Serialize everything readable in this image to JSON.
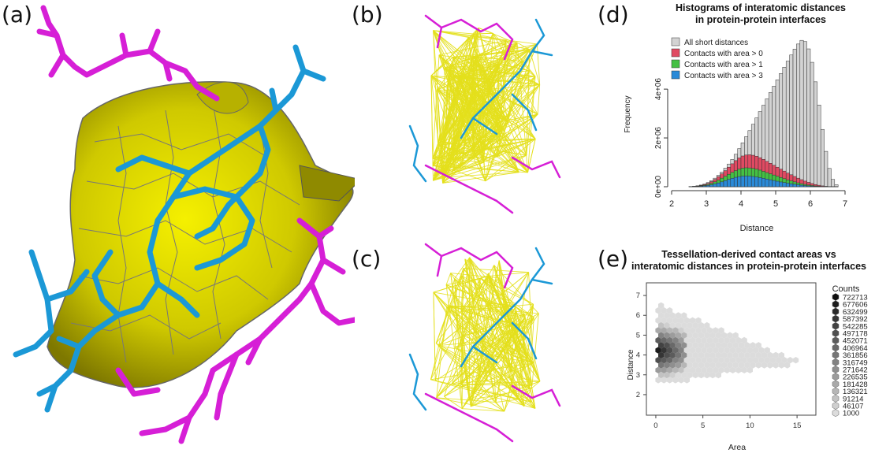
{
  "panels": {
    "a": {
      "label": "(a)"
    },
    "b": {
      "label": "(b)"
    },
    "c": {
      "label": "(c)"
    },
    "d": {
      "label": "(d)"
    },
    "e": {
      "label": "(e)"
    }
  },
  "colors": {
    "chain_a": "#d61fd6",
    "chain_b": "#1b98d6",
    "surface_yellow": "#e6e000",
    "surface_dark": "#8a8400",
    "contact_lines": "#e4e01c",
    "hist_all": "#d3d3d3",
    "hist_gt0": "#e04a62",
    "hist_gt1": "#44c044",
    "hist_gt3": "#2a8ad8"
  },
  "chart_data": [
    {
      "type": "bar",
      "title": "Histograms of interatomic distances\nin protein-protein interfaces",
      "title_lines": [
        "Histograms of interatomic distances",
        "in protein-protein interfaces"
      ],
      "xlabel": "Distance",
      "ylabel": "Frequency",
      "xlim": [
        2,
        7
      ],
      "ylim": [
        0,
        6200000
      ],
      "xticks": [
        "2",
        "3",
        "4",
        "5",
        "6",
        "7"
      ],
      "yticks": [
        "0e+00",
        "2e+06",
        "4e+06"
      ],
      "legend_position": "top-left",
      "bin_width": 0.1,
      "x": [
        2.5,
        2.6,
        2.7,
        2.8,
        2.9,
        3.0,
        3.1,
        3.2,
        3.3,
        3.4,
        3.5,
        3.6,
        3.7,
        3.8,
        3.9,
        4.0,
        4.1,
        4.2,
        4.3,
        4.4,
        4.5,
        4.6,
        4.7,
        4.8,
        4.9,
        5.0,
        5.1,
        5.2,
        5.3,
        5.4,
        5.5,
        5.6,
        5.7,
        5.8,
        5.9,
        6.0,
        6.1,
        6.2,
        6.3,
        6.4,
        6.5,
        6.6,
        6.7
      ],
      "series": [
        {
          "name": "All short distances",
          "values": [
            10000,
            20000,
            40000,
            70000,
            110000,
            170000,
            250000,
            350000,
            470000,
            600000,
            760000,
            930000,
            1120000,
            1330000,
            1560000,
            1800000,
            2050000,
            2300000,
            2560000,
            2820000,
            3080000,
            3340000,
            3600000,
            3860000,
            4120000,
            4380000,
            4640000,
            4900000,
            5150000,
            5400000,
            5640000,
            5850000,
            6000000,
            5950000,
            5650000,
            5100000,
            4300000,
            3350000,
            2350000,
            1450000,
            750000,
            300000,
            80000
          ]
        },
        {
          "name": "Contacts with area > 0",
          "values": [
            8000,
            15000,
            30000,
            55000,
            90000,
            140000,
            210000,
            300000,
            410000,
            530000,
            660000,
            800000,
            940000,
            1070000,
            1180000,
            1260000,
            1300000,
            1310000,
            1290000,
            1250000,
            1190000,
            1120000,
            1040000,
            960000,
            880000,
            800000,
            720000,
            640000,
            560000,
            490000,
            420000,
            350000,
            290000,
            230000,
            180000,
            130000,
            90000,
            60000,
            35000,
            18000,
            8000,
            3000,
            1000
          ]
        },
        {
          "name": "Contacts with area > 1",
          "values": [
            5000,
            10000,
            20000,
            38000,
            62000,
            95000,
            140000,
            200000,
            270000,
            350000,
            430000,
            510000,
            590000,
            660000,
            720000,
            760000,
            775000,
            770000,
            750000,
            720000,
            680000,
            630000,
            580000,
            530000,
            480000,
            430000,
            380000,
            330000,
            280000,
            240000,
            200000,
            160000,
            125000,
            95000,
            70000,
            50000,
            33000,
            20000,
            11000,
            5000,
            2000,
            800,
            200
          ]
        },
        {
          "name": "Contacts with area > 3",
          "values": [
            3000,
            6000,
            12000,
            22000,
            36000,
            55000,
            80000,
            115000,
            155000,
            200000,
            250000,
            300000,
            345000,
            385000,
            415000,
            435000,
            440000,
            435000,
            420000,
            400000,
            375000,
            345000,
            315000,
            285000,
            255000,
            225000,
            195000,
            170000,
            145000,
            120000,
            100000,
            80000,
            62000,
            47000,
            34000,
            24000,
            15000,
            9000,
            5000,
            2000,
            800,
            300,
            100
          ]
        }
      ]
    },
    {
      "type": "heatmap",
      "title": "Tessellation-derived contact areas vs\ninteratomic distances in protein-protein interfaces",
      "title_lines": [
        "Tessellation-derived contact areas vs",
        "interatomic distances in protein-protein interfaces"
      ],
      "xlabel": "Area",
      "ylabel": "Distance",
      "xlim": [
        -1,
        17
      ],
      "ylim": [
        1.6,
        7.4
      ],
      "xticks": [
        "0",
        "5",
        "10",
        "15"
      ],
      "yticks": [
        "2",
        "3",
        "4",
        "5",
        "6",
        "7"
      ],
      "legend_title": "Counts",
      "legend_levels": [
        "722713",
        "677606",
        "632499",
        "587392",
        "542285",
        "497178",
        "452071",
        "406964",
        "361856",
        "316749",
        "271642",
        "226535",
        "181428",
        "136321",
        "91214",
        "46107",
        "1000"
      ],
      "legend_position": "right"
    }
  ]
}
